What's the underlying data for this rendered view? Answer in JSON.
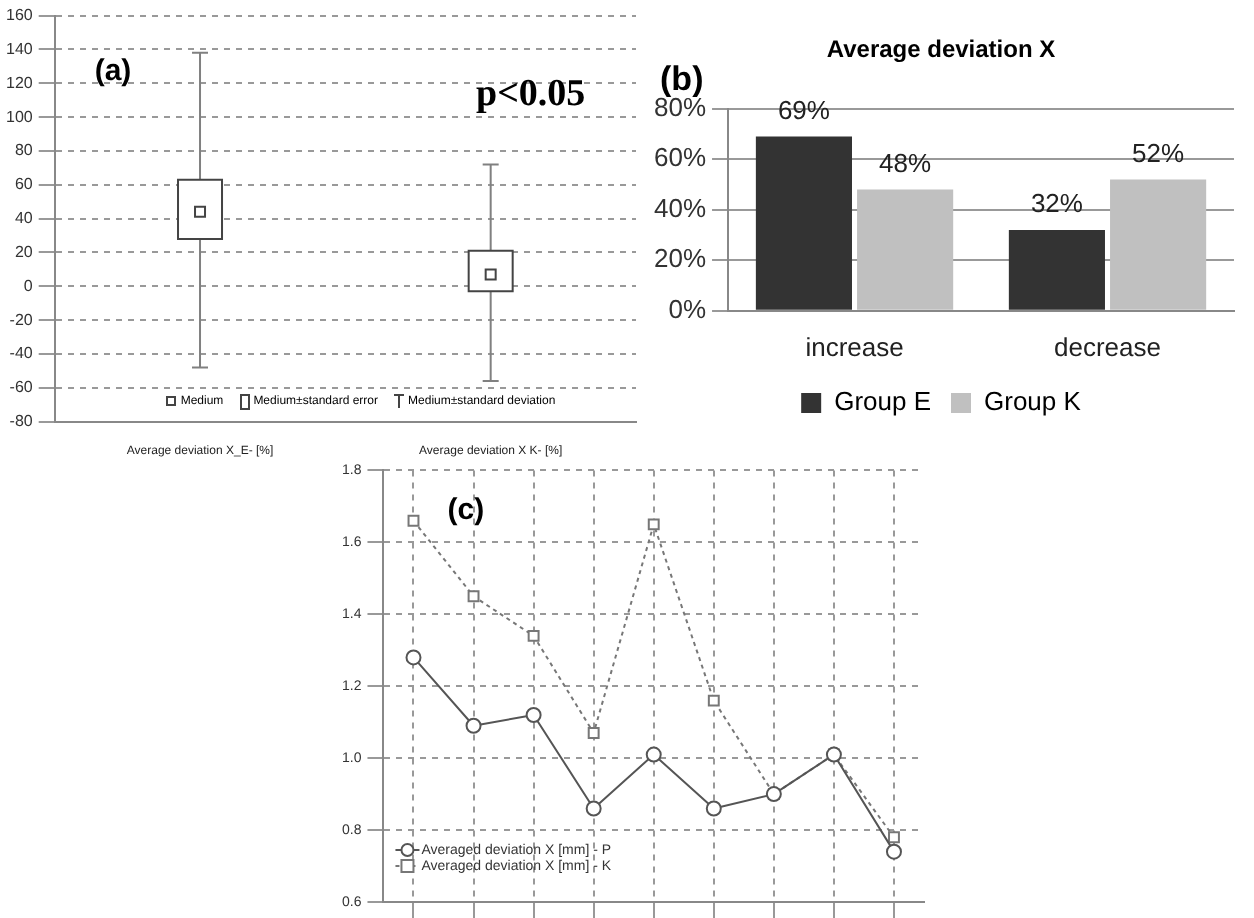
{
  "chart_data": [
    {
      "type": "box",
      "categories": [
        "Average deviation X_E- [%]",
        "Average deviation X K- [%]"
      ],
      "boxes": [
        {
          "low": -48,
          "q1": 28,
          "median": 44,
          "q3": 63,
          "high": 138
        },
        {
          "low": -56,
          "q1": -3,
          "median": 7,
          "q3": 21,
          "high": 72
        }
      ],
      "ylim": [
        -80,
        160
      ],
      "yticks": [
        -80,
        -60,
        -40,
        -20,
        0,
        20,
        40,
        60,
        80,
        100,
        120,
        140,
        160
      ],
      "grid": "y",
      "annotations": [
        "(a)",
        "p<0.05",
        "Medium",
        "Medium±standard error",
        "Medium±standard deviation"
      ]
    },
    {
      "type": "bar",
      "title": "Average deviation X",
      "categories": [
        "increase",
        "decrease"
      ],
      "series": [
        {
          "name": "Group E",
          "color": "#333333",
          "values": [
            69,
            32
          ],
          "value_labels": [
            "69%",
            "32%"
          ]
        },
        {
          "name": "Group K",
          "color": "#c0c0c0",
          "values": [
            48,
            52
          ],
          "value_labels": [
            "48%",
            "52%"
          ]
        }
      ],
      "ylim": [
        0,
        80
      ],
      "yticks": [
        {
          "value": 0,
          "label": "0%"
        },
        {
          "value": 20,
          "label": "20%"
        },
        {
          "value": 40,
          "label": "40%"
        },
        {
          "value": 60,
          "label": "60%"
        },
        {
          "value": 80,
          "label": "80%"
        }
      ],
      "grid": "y",
      "legend": "bottom",
      "annotations": [
        "(b)"
      ]
    },
    {
      "type": "line",
      "categories": [
        null,
        null,
        null,
        null,
        null,
        null,
        null,
        null,
        null
      ],
      "series": [
        {
          "name": "Averaged deviation X [mm] - P",
          "color": "#555555",
          "marker": "circle",
          "line_style": "solid",
          "values": [
            1.28,
            1.09,
            1.12,
            0.86,
            1.01,
            0.86,
            0.9,
            1.01,
            0.74
          ]
        },
        {
          "name": "Averaged deviation X [mm] - K",
          "color": "#777777",
          "marker": "square",
          "line_style": "dotted",
          "values": [
            1.66,
            1.45,
            1.34,
            1.07,
            1.65,
            1.16,
            0.9,
            1.01,
            0.78
          ]
        }
      ],
      "ylim": [
        0.6,
        1.8
      ],
      "yticks": [
        0.6,
        0.8,
        {
          "value": 1,
          "label": "1.0"
        },
        1.2,
        1.4,
        1.6,
        1.8
      ],
      "grid": true,
      "legend": "bottom left",
      "annotations": [
        "(c)"
      ]
    }
  ]
}
